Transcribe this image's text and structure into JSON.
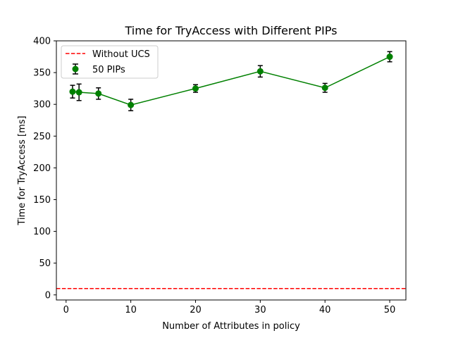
{
  "chart_data": {
    "type": "line",
    "title": "Time for TryAccess with Different PIPs",
    "xlabel": "Number of Attributes in policy",
    "ylabel": "Time for TryAccess [ms]",
    "xlim": [
      -1.5,
      52.5
    ],
    "ylim": [
      -8,
      400
    ],
    "xticks": [
      0,
      10,
      20,
      30,
      40,
      50
    ],
    "yticks": [
      0,
      50,
      100,
      150,
      200,
      250,
      300,
      350,
      400
    ],
    "grid": false,
    "legend_position": "top-left",
    "series": [
      {
        "name": "50 PIPs",
        "color": "#008000",
        "marker": "circle",
        "x": [
          1,
          2,
          5,
          10,
          20,
          30,
          40,
          50
        ],
        "y": [
          320,
          319,
          317,
          299,
          325,
          352,
          326,
          375
        ],
        "yerr": [
          10,
          13,
          9,
          9,
          6,
          9,
          7,
          8
        ]
      }
    ],
    "reference_lines": [
      {
        "name": "Without UCS",
        "y": 10,
        "color": "#ff0000",
        "style": "dashed"
      }
    ]
  }
}
